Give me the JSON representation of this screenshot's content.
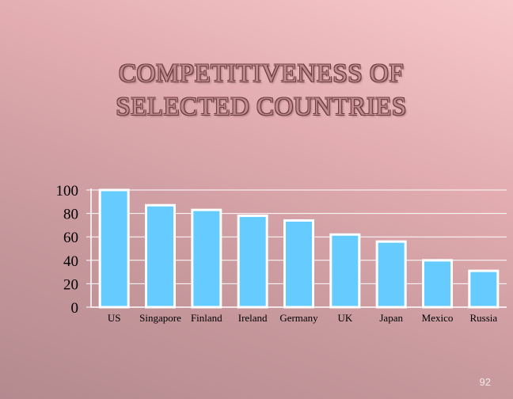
{
  "title_lines": [
    "COMPETITIVENESS OF",
    "SELECTED COUNTRIES"
  ],
  "page_number": "92",
  "chart_data": {
    "type": "bar",
    "title": "COMPETITIVENESS OF SELECTED COUNTRIES",
    "categories": [
      "US",
      "Singapore",
      "Finland",
      "Ireland",
      "Germany",
      "UK",
      "Japan",
      "Mexico",
      "Russia"
    ],
    "values": [
      100,
      87,
      83,
      78,
      74,
      62,
      56,
      40,
      31
    ],
    "ylim": [
      0,
      100
    ],
    "yticks": [
      "0",
      "20",
      "40",
      "60",
      "80",
      "100"
    ],
    "grid": true,
    "colors": {
      "bar": "#66ccff",
      "bar_border": "#ffffff",
      "axis": "#ffffff",
      "grid": "#ffffff",
      "text": "#000000"
    }
  }
}
